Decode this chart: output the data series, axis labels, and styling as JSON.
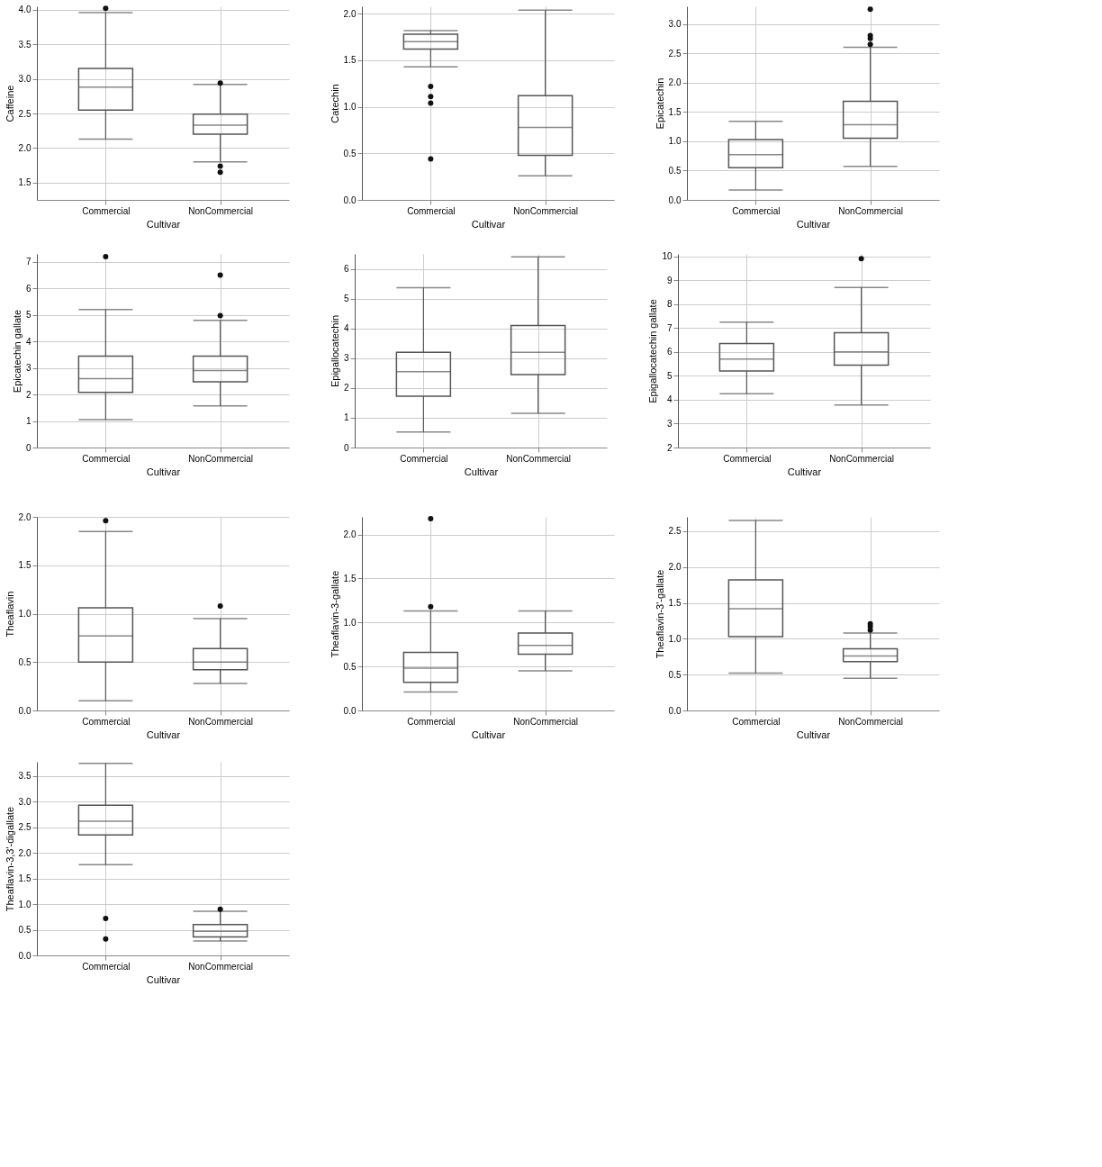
{
  "chart_data": [
    {
      "type": "box",
      "categories": [
        "Commercial",
        "NonCommercial"
      ],
      "xlabel": "Cultivar",
      "ylabel": "Caffeine",
      "ylim": [
        1.25,
        4.05
      ],
      "yticks": [
        1.5,
        {
          "value": 2,
          "label": "2.0"
        },
        2.5,
        {
          "value": 3,
          "label": "3.0"
        },
        3.5,
        {
          "value": 4,
          "label": "4.0"
        }
      ],
      "grid": true,
      "series": [
        {
          "color": "#555555",
          "boxes": [
            {
              "low": 2.13,
              "q1": 2.55,
              "median": 2.88,
              "q3": 3.15,
              "high": 3.96,
              "outliers": [
                4.02
              ]
            },
            {
              "low": 1.8,
              "q1": 2.2,
              "median": 2.33,
              "q3": 2.49,
              "high": 2.92,
              "outliers": [
                2.94,
                1.74,
                1.65
              ]
            }
          ]
        }
      ]
    },
    {
      "type": "box",
      "categories": [
        "Commercial",
        "NonCommercial"
      ],
      "xlabel": "Cultivar",
      "ylabel": "Catechin",
      "ylim": [
        0,
        2.08
      ],
      "yticks": [
        {
          "value": 0,
          "label": "0.0"
        },
        0.5,
        {
          "value": 1,
          "label": "1.0"
        },
        1.5,
        {
          "value": 2,
          "label": "2.0"
        }
      ],
      "grid": true,
      "series": [
        {
          "color": "#555555",
          "boxes": [
            {
              "low": 1.43,
              "q1": 1.62,
              "median": 1.7,
              "q3": 1.78,
              "high": 1.82,
              "outliers": [
                1.22,
                1.11,
                1.04,
                0.44
              ]
            },
            {
              "low": 0.26,
              "q1": 0.48,
              "median": 0.78,
              "q3": 1.12,
              "high": 2.04
            }
          ]
        }
      ]
    },
    {
      "type": "box",
      "categories": [
        "Commercial",
        "NonCommercial"
      ],
      "xlabel": "Cultivar",
      "ylabel": "Epicatechin",
      "ylim": [
        0,
        3.3
      ],
      "yticks": [
        {
          "value": 0,
          "label": "0.0"
        },
        0.5,
        {
          "value": 1,
          "label": "1.0"
        },
        1.5,
        {
          "value": 2,
          "label": "2.0"
        },
        2.5,
        {
          "value": 3,
          "label": "3.0"
        }
      ],
      "grid": true,
      "series": [
        {
          "color": "#555555",
          "boxes": [
            {
              "low": 0.17,
              "q1": 0.55,
              "median": 0.77,
              "q3": 1.03,
              "high": 1.34
            },
            {
              "low": 0.57,
              "q1": 1.05,
              "median": 1.28,
              "q3": 1.68,
              "high": 2.6,
              "outliers": [
                2.65,
                2.75,
                2.8,
                3.25
              ]
            }
          ]
        }
      ]
    },
    {
      "type": "box",
      "categories": [
        "Commercial",
        "NonCommercial"
      ],
      "xlabel": "Cultivar",
      "ylabel": "Epicatechin gallate",
      "ylim": [
        0,
        7.3
      ],
      "yticks": [
        0,
        1,
        2,
        3,
        4,
        5,
        6,
        7
      ],
      "grid": true,
      "series": [
        {
          "color": "#555555",
          "boxes": [
            {
              "low": 1.05,
              "q1": 2.08,
              "median": 2.6,
              "q3": 3.45,
              "high": 5.2,
              "outliers": [
                7.2
              ]
            },
            {
              "low": 1.57,
              "q1": 2.48,
              "median": 2.9,
              "q3": 3.45,
              "high": 4.8,
              "outliers": [
                4.97,
                6.5
              ]
            }
          ]
        }
      ]
    },
    {
      "type": "box",
      "categories": [
        "Commercial",
        "NonCommercial"
      ],
      "xlabel": "Cultivar",
      "ylabel": "Epigallocatechin",
      "ylim": [
        0,
        6.5
      ],
      "yticks": [
        0,
        1,
        2,
        3,
        4,
        5,
        6
      ],
      "grid": true,
      "series": [
        {
          "color": "#555555",
          "boxes": [
            {
              "low": 0.52,
              "q1": 1.72,
              "median": 2.55,
              "q3": 3.2,
              "high": 5.37
            },
            {
              "low": 1.15,
              "q1": 2.45,
              "median": 3.2,
              "q3": 4.1,
              "high": 6.4
            }
          ]
        }
      ]
    },
    {
      "type": "box",
      "categories": [
        "Commercial",
        "NonCommercial"
      ],
      "xlabel": "Cultivar",
      "ylabel": "Epigallocatechin gallate",
      "ylim": [
        2,
        10.1
      ],
      "yticks": [
        2,
        3,
        4,
        5,
        6,
        7,
        8,
        9,
        10
      ],
      "grid": true,
      "series": [
        {
          "color": "#555555",
          "boxes": [
            {
              "low": 4.25,
              "q1": 5.2,
              "median": 5.7,
              "q3": 6.35,
              "high": 7.25
            },
            {
              "low": 3.78,
              "q1": 5.45,
              "median": 6.0,
              "q3": 6.8,
              "high": 8.7,
              "outliers": [
                9.9
              ]
            }
          ]
        }
      ]
    },
    {
      "type": "box",
      "categories": [
        "Commercial",
        "NonCommercial"
      ],
      "xlabel": "Cultivar",
      "ylabel": "Theaflavin",
      "ylim": [
        0,
        2
      ],
      "yticks": [
        {
          "value": 0,
          "label": "0.0"
        },
        0.5,
        {
          "value": 1,
          "label": "1.0"
        },
        1.5,
        {
          "value": 2,
          "label": "2.0"
        }
      ],
      "grid": true,
      "series": [
        {
          "color": "#555555",
          "boxes": [
            {
              "low": 0.1,
              "q1": 0.5,
              "median": 0.77,
              "q3": 1.06,
              "high": 1.85,
              "outliers": [
                1.96
              ]
            },
            {
              "low": 0.28,
              "q1": 0.42,
              "median": 0.5,
              "q3": 0.64,
              "high": 0.95,
              "outliers": [
                1.08
              ]
            }
          ]
        }
      ]
    },
    {
      "type": "box",
      "categories": [
        "Commercial",
        "NonCommercial"
      ],
      "xlabel": "Cultivar",
      "ylabel": "Theaflavin-3-gallate",
      "ylim": [
        0,
        2.2
      ],
      "yticks": [
        {
          "value": 0,
          "label": "0.0"
        },
        0.5,
        {
          "value": 1,
          "label": "1.0"
        },
        1.5,
        {
          "value": 2,
          "label": "2.0"
        }
      ],
      "grid": true,
      "series": [
        {
          "color": "#555555",
          "boxes": [
            {
              "low": 0.21,
              "q1": 0.32,
              "median": 0.48,
              "q3": 0.66,
              "high": 1.13,
              "outliers": [
                1.18,
                2.18
              ]
            },
            {
              "low": 0.45,
              "q1": 0.64,
              "median": 0.74,
              "q3": 0.88,
              "high": 1.13
            }
          ]
        }
      ]
    },
    {
      "type": "box",
      "categories": [
        "Commercial",
        "NonCommercial"
      ],
      "xlabel": "Cultivar",
      "ylabel": "Theaflavin-3'-gallate",
      "ylim": [
        0,
        2.7
      ],
      "yticks": [
        {
          "value": 0,
          "label": "0.0"
        },
        0.5,
        {
          "value": 1,
          "label": "1.0"
        },
        1.5,
        {
          "value": 2,
          "label": "2.0"
        },
        2.5
      ],
      "grid": true,
      "series": [
        {
          "color": "#555555",
          "boxes": [
            {
              "low": 0.52,
              "q1": 1.03,
              "median": 1.42,
              "q3": 1.82,
              "high": 2.65
            },
            {
              "low": 0.45,
              "q1": 0.68,
              "median": 0.76,
              "q3": 0.86,
              "high": 1.08,
              "outliers": [
                1.12,
                1.17,
                1.21
              ]
            }
          ]
        }
      ]
    },
    {
      "type": "box",
      "categories": [
        "Commercial",
        "NonCommercial"
      ],
      "xlabel": "Cultivar",
      "ylabel": "Theaflavin-3,3'-digallate",
      "ylim": [
        0,
        3.78
      ],
      "yticks": [
        {
          "value": 0,
          "label": "0.0"
        },
        0.5,
        {
          "value": 1,
          "label": "1.0"
        },
        1.5,
        {
          "value": 2,
          "label": "2.0"
        },
        2.5,
        {
          "value": 3,
          "label": "3.0"
        },
        3.5
      ],
      "grid": true,
      "series": [
        {
          "color": "#555555",
          "boxes": [
            {
              "low": 1.77,
              "q1": 2.35,
              "median": 2.62,
              "q3": 2.93,
              "high": 3.75,
              "outliers": [
                0.72,
                0.32
              ]
            },
            {
              "low": 0.28,
              "q1": 0.36,
              "median": 0.47,
              "q3": 0.6,
              "high": 0.86,
              "outliers": [
                0.9
              ]
            }
          ]
        }
      ]
    }
  ]
}
